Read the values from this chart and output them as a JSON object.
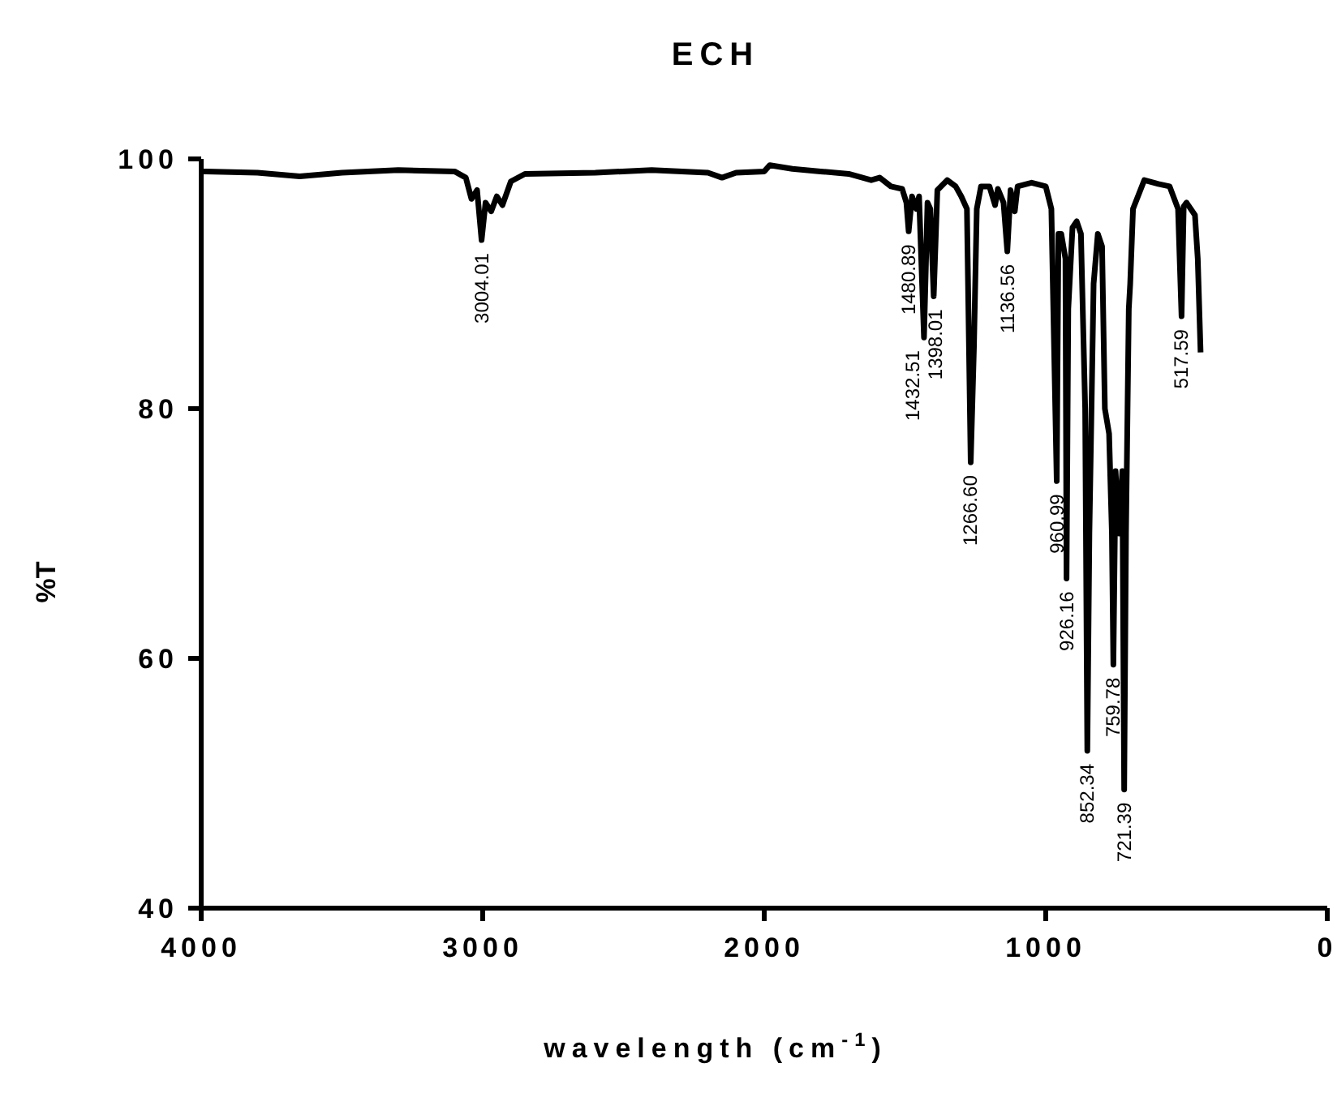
{
  "chart_data": {
    "type": "line",
    "title": "ECH",
    "xlabel": "wavelength (cm$^{-1}$)",
    "ylabel": "%T",
    "x": [
      4000,
      3800,
      3650,
      3500,
      3300,
      3100,
      3060,
      3040,
      3020,
      3004,
      2990,
      2970,
      2950,
      2930,
      2900,
      2850,
      2600,
      2400,
      2200,
      2150,
      2100,
      2000,
      1980,
      1900,
      1800,
      1700,
      1620,
      1590,
      1550,
      1510,
      1495,
      1487,
      1475,
      1460,
      1450,
      1432.51,
      1420,
      1410,
      1398.01,
      1385,
      1350,
      1320,
      1300,
      1280,
      1266.6,
      1255,
      1245,
      1230,
      1200,
      1180,
      1170,
      1150,
      1136.56,
      1125,
      1110,
      1100,
      1050,
      1000,
      980,
      960.99,
      955,
      945,
      930,
      926.16,
      920,
      905,
      890,
      875,
      860,
      852.34,
      845,
      830,
      815,
      800,
      790,
      775,
      765,
      759.78,
      752,
      740,
      728,
      721.39,
      715,
      705,
      700,
      690,
      650,
      600,
      560,
      530,
      517.59,
      510,
      500,
      470,
      460,
      450
    ],
    "series": [
      {
        "color": "#000000",
        "values": [
          99,
          98.9,
          98.6,
          98.9,
          99.1,
          99,
          98.5,
          96.8,
          97.5,
          93.5,
          96.5,
          95.8,
          97,
          96.3,
          98.2,
          98.8,
          98.9,
          99.1,
          98.9,
          98.5,
          98.9,
          99,
          99.5,
          99.2,
          99,
          98.8,
          98.3,
          98.5,
          97.8,
          97.6,
          96.5,
          94.2,
          97,
          96,
          97,
          85.7,
          96.5,
          96,
          89,
          97.5,
          98.3,
          97.8,
          97,
          96,
          75.7,
          85,
          96,
          97.8,
          97.8,
          96.3,
          97.6,
          96.5,
          92.6,
          97.5,
          95.8,
          97.8,
          98.1,
          97.8,
          96,
          74.2,
          94,
          94,
          92,
          66.4,
          88,
          94.5,
          95,
          94,
          80,
          52.6,
          70,
          90,
          94,
          93,
          80,
          78,
          70,
          59.5,
          75,
          70,
          75,
          49.5,
          70,
          88,
          90,
          96,
          98.3,
          98,
          97.8,
          96,
          87.4,
          96.2,
          96.5,
          95.5,
          92,
          84.5
        ]
      }
    ],
    "xlim": [
      4000,
      0
    ],
    "xticks": [
      4000,
      3000,
      2000,
      1000,
      0
    ],
    "ylim": [
      40,
      100
    ],
    "yticks": [
      40,
      60,
      80,
      100
    ],
    "marker": "none",
    "line_style": "solid",
    "annotations": [
      {
        "text": "3004.01",
        "x": 3004.01,
        "y": 93.5
      },
      {
        "text": "1480.89",
        "x": 1487,
        "y": 94.2
      },
      {
        "text": "1432.51",
        "x": 1432.51,
        "y": 85.7
      },
      {
        "text": "1398.01",
        "x": 1398.01,
        "y": 89
      },
      {
        "text": "1266.60",
        "x": 1266.6,
        "y": 75.7
      },
      {
        "text": "1136.56",
        "x": 1136.56,
        "y": 92.6
      },
      {
        "text": "960.99",
        "x": 960.99,
        "y": 74.2
      },
      {
        "text": "926.16",
        "x": 926.16,
        "y": 66.4
      },
      {
        "text": "852.34",
        "x": 852.34,
        "y": 52.6
      },
      {
        "text": "759.78",
        "x": 759.78,
        "y": 59.5
      },
      {
        "text": "721.39",
        "x": 721.39,
        "y": 49.5
      },
      {
        "text": "517.59",
        "x": 517.59,
        "y": 87.4
      }
    ]
  }
}
